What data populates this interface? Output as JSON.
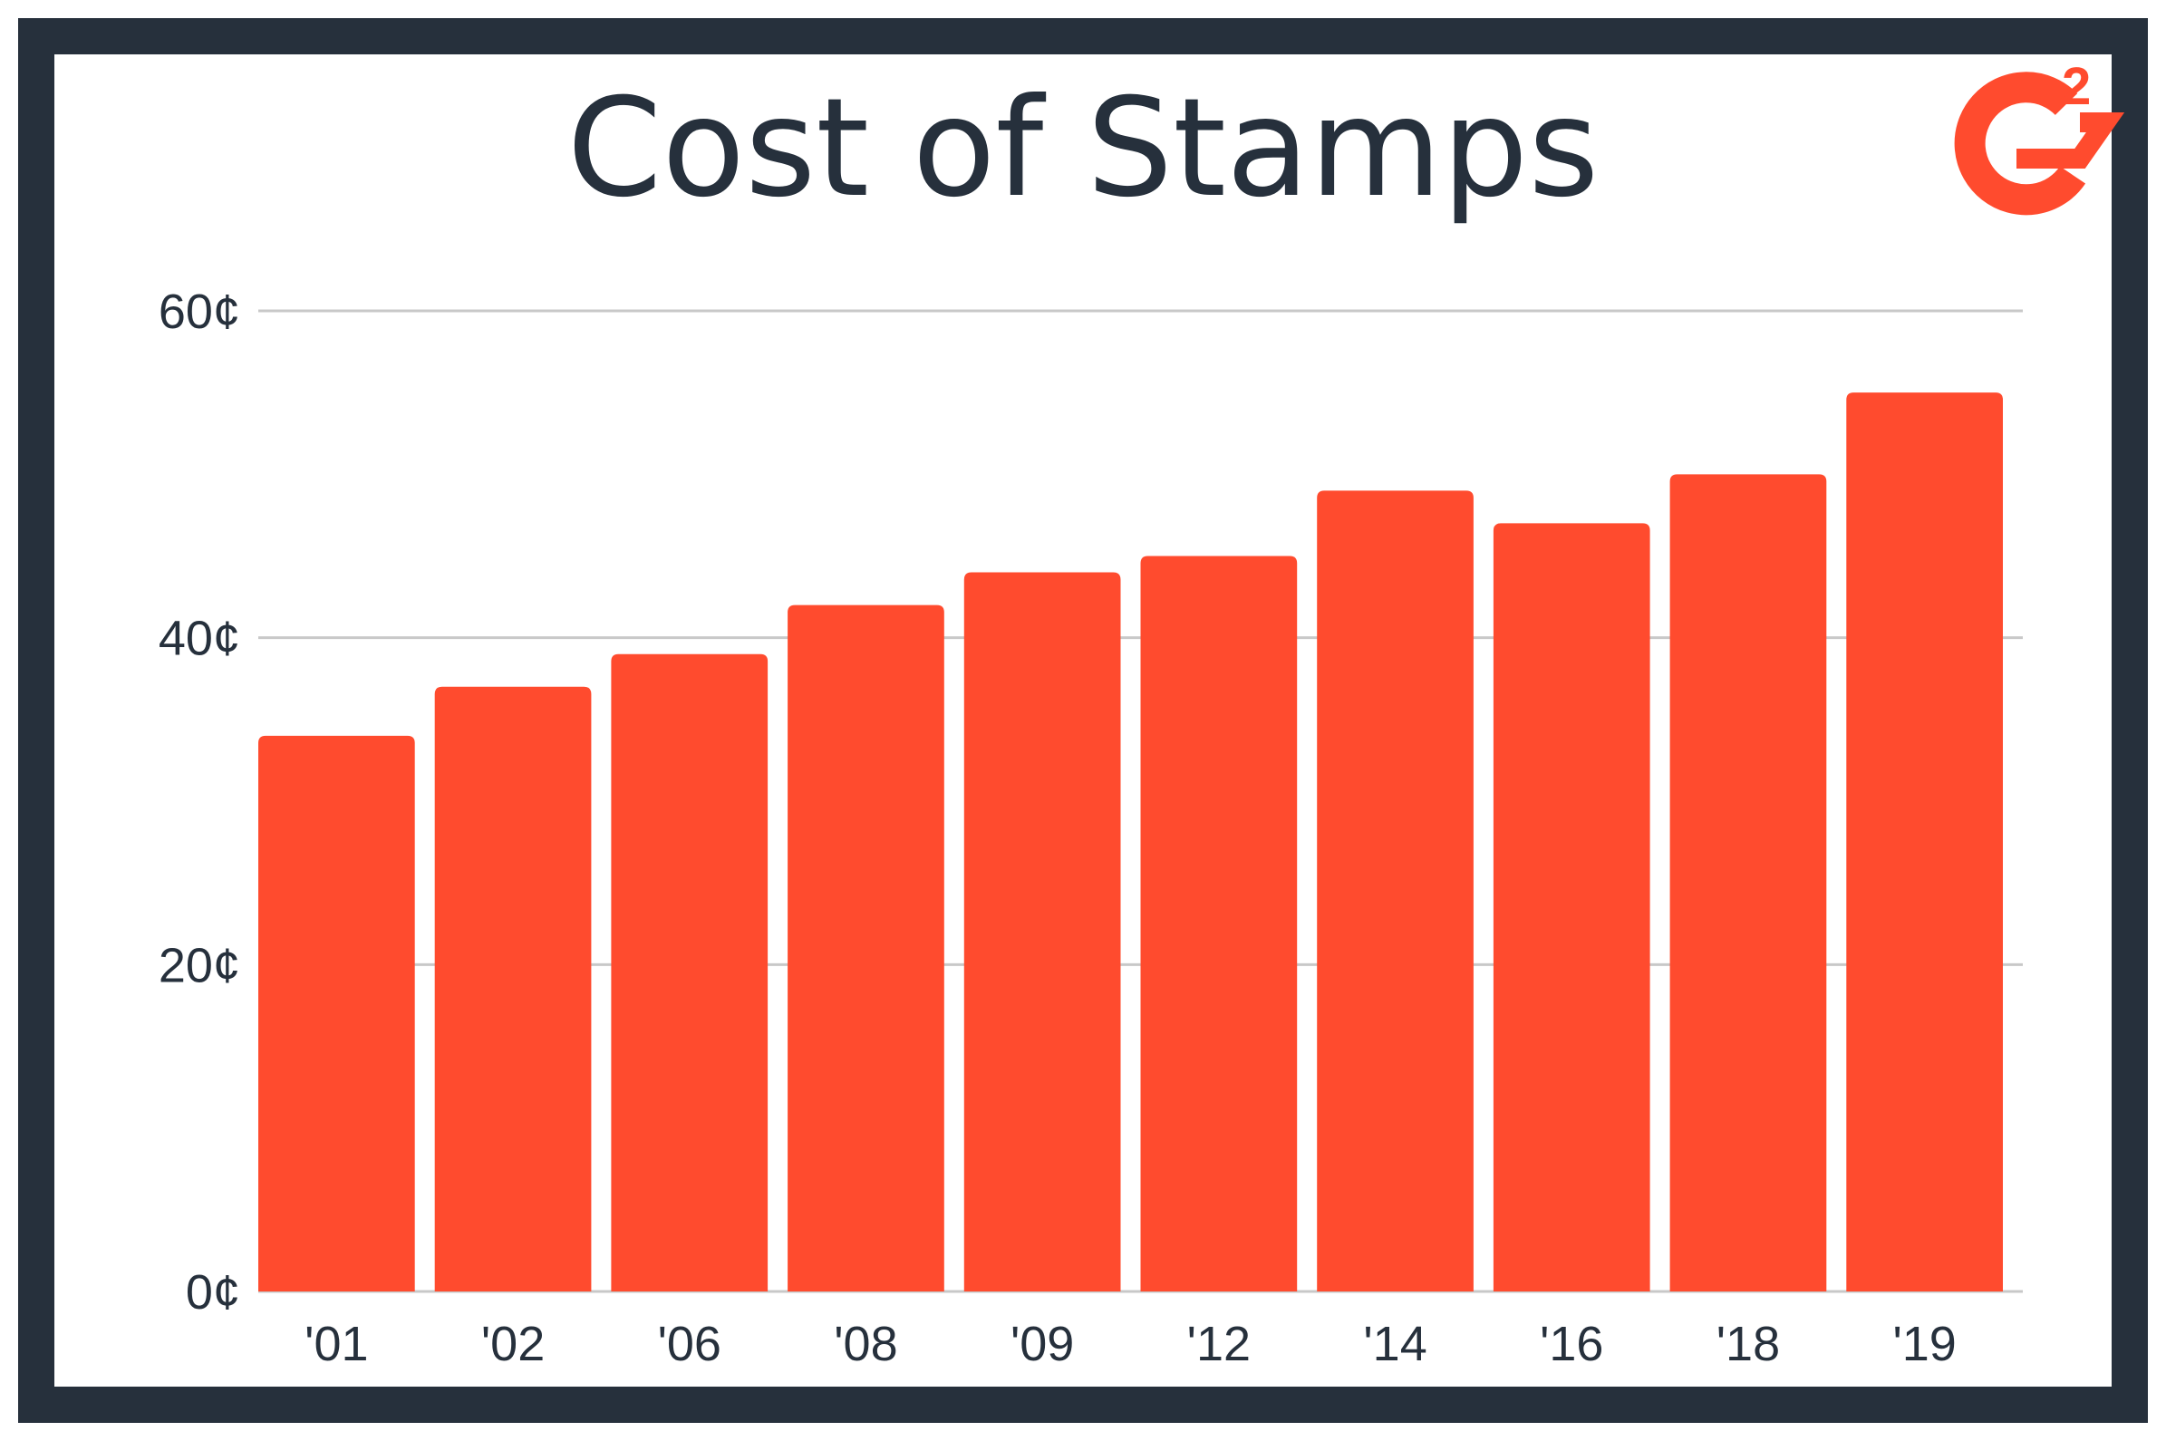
{
  "chart_data": {
    "type": "bar",
    "title": "Cost of Stamps",
    "xlabel": "",
    "ylabel": "",
    "categories": [
      "'01",
      "'02",
      "'06",
      "'08",
      "'09",
      "'12",
      "'14",
      "'16",
      "'18",
      "'19"
    ],
    "values": [
      34,
      37,
      39,
      42,
      44,
      45,
      49,
      47,
      50,
      55
    ],
    "ylim": [
      0,
      60
    ],
    "yticks": [
      "0¢",
      "20¢",
      "40¢",
      "60¢"
    ],
    "ytick_values": [
      0,
      20,
      40,
      60
    ],
    "grid": true,
    "bar_color": "#ff4b2e",
    "grid_color": "#c8c8c8",
    "text_color": "#26303c",
    "frame_color": "#26303c"
  },
  "logo": {
    "name": "g2-logo-icon",
    "text": "2",
    "color": "#ff4b2e"
  }
}
